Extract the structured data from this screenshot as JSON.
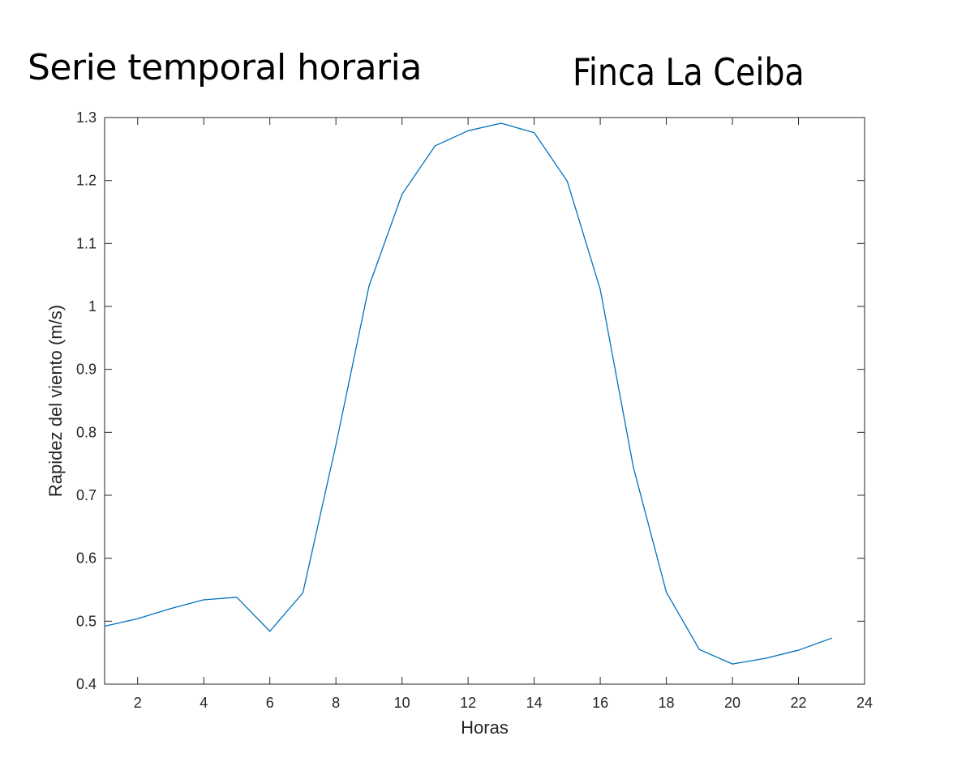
{
  "header": {
    "left_title": "Serie temporal horaria",
    "right_title": "Finca La Ceiba"
  },
  "colors": {
    "line": "#0072bd",
    "axes": "#262626",
    "background": "#ffffff"
  },
  "chart_data": {
    "type": "line",
    "title": "",
    "xlabel": "Horas",
    "ylabel": "Rapidez del viento (m/s)",
    "xlim": [
      1,
      24
    ],
    "ylim": [
      0.4,
      1.3
    ],
    "xticks": [
      2,
      4,
      6,
      8,
      10,
      12,
      14,
      16,
      18,
      20,
      22,
      24
    ],
    "yticks": [
      0.4,
      0.5,
      0.6,
      0.7,
      0.8,
      0.9,
      1,
      1.1,
      1.2,
      1.3
    ],
    "grid": false,
    "series": [
      {
        "x": [
          1,
          2,
          3,
          4,
          5,
          6,
          7,
          8,
          9,
          10,
          11,
          12,
          13,
          14,
          15,
          16,
          17,
          18,
          19,
          20,
          21,
          22,
          23
        ],
        "values": [
          0.492,
          0.504,
          0.52,
          0.534,
          0.538,
          0.484,
          0.545,
          0.78,
          1.032,
          1.178,
          1.255,
          1.279,
          1.291,
          1.276,
          1.199,
          1.027,
          0.745,
          0.546,
          0.455,
          0.432,
          0.441,
          0.454,
          0.473
        ]
      }
    ]
  }
}
